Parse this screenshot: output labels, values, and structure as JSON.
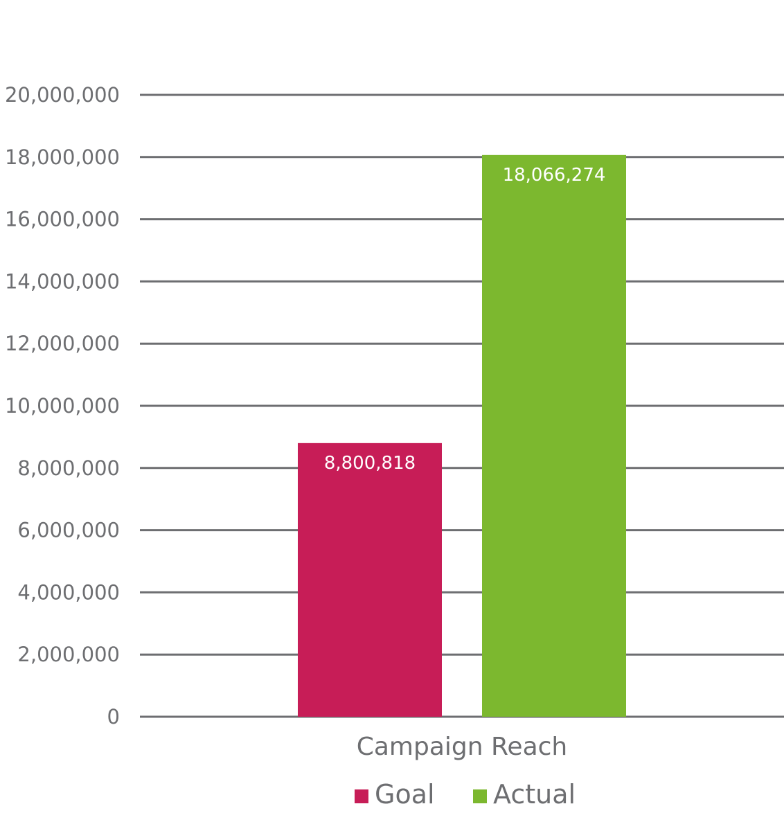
{
  "chart_data": {
    "type": "bar",
    "categories": [
      "Campaign Reach"
    ],
    "series": [
      {
        "name": "Goal",
        "values": [
          8800818
        ],
        "color": "#c71d57",
        "label": "8,800,818"
      },
      {
        "name": "Actual",
        "values": [
          18066274
        ],
        "color": "#7cb82f",
        "label": "18,066,274"
      }
    ],
    "ylim": [
      0,
      20000000
    ],
    "yticks": [
      0,
      2000000,
      4000000,
      6000000,
      8000000,
      10000000,
      12000000,
      14000000,
      16000000,
      18000000,
      20000000
    ],
    "ytick_labels": [
      "0",
      "2,000,000",
      "4,000,000",
      "6,000,000",
      "8,000,000",
      "10,000,000",
      "12,000,000",
      "14,000,000",
      "16,000,000",
      "18,000,000",
      "20,000,000"
    ],
    "grid": true,
    "grid_color": "#6d6e71",
    "legend_position": "bottom",
    "data_labels": "inside-top"
  }
}
